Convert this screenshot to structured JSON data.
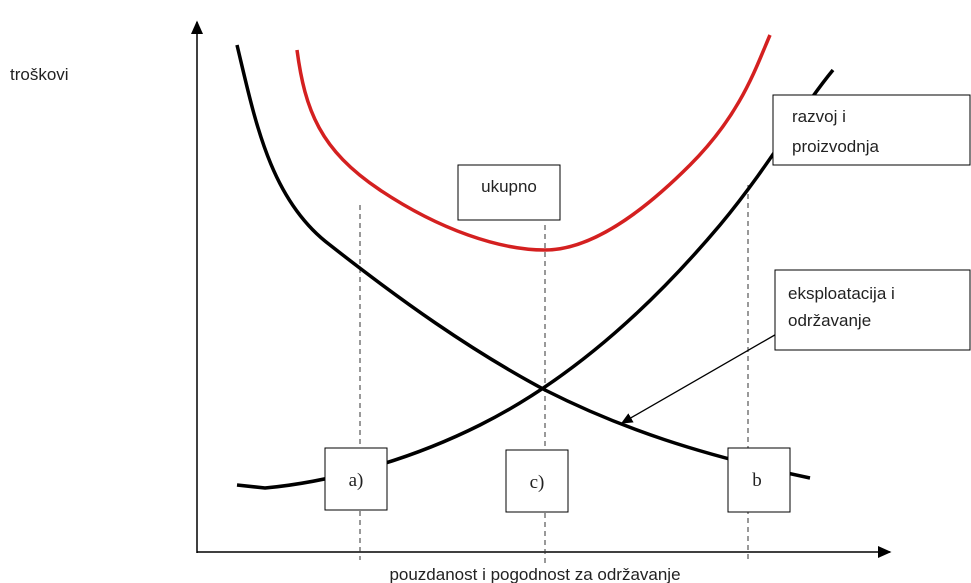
{
  "y_axis_label": "troškovi",
  "x_axis_label": "pouzdanost i pogodnost za održavanje",
  "curves": {
    "development": [
      "razvoj i",
      "proizvodnja"
    ],
    "total": "ukupno",
    "operation": [
      "eksploatacija i",
      "održavanje"
    ]
  },
  "points": [
    "a)",
    "c)",
    "b"
  ]
}
